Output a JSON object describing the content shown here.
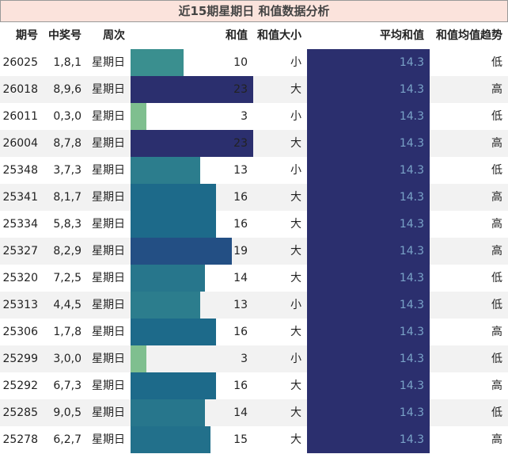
{
  "title": "近15期星期日 和值数据分析",
  "table": {
    "headers": [
      "期号",
      "中奖号",
      "周次",
      "和值",
      "和值大小",
      "平均和值",
      "和值均值趋势"
    ],
    "rows": [
      [
        "26025",
        "1,8,1",
        "星期日",
        10,
        "小",
        14.3,
        "低"
      ],
      [
        "26018",
        "8,9,6",
        "星期日",
        23,
        "大",
        14.3,
        "高"
      ],
      [
        "26011",
        "0,3,0",
        "星期日",
        3,
        "小",
        14.3,
        "低"
      ],
      [
        "26004",
        "8,7,8",
        "星期日",
        23,
        "大",
        14.3,
        "高"
      ],
      [
        "25348",
        "3,7,3",
        "星期日",
        13,
        "小",
        14.3,
        "低"
      ],
      [
        "25341",
        "8,1,7",
        "星期日",
        16,
        "大",
        14.3,
        "高"
      ],
      [
        "25334",
        "5,8,3",
        "星期日",
        16,
        "大",
        14.3,
        "高"
      ],
      [
        "25327",
        "8,2,9",
        "星期日",
        19,
        "大",
        14.3,
        "高"
      ],
      [
        "25320",
        "7,2,5",
        "星期日",
        14,
        "大",
        14.3,
        "低"
      ],
      [
        "25313",
        "4,4,5",
        "星期日",
        13,
        "小",
        14.3,
        "低"
      ],
      [
        "25306",
        "1,7,8",
        "星期日",
        16,
        "大",
        14.3,
        "高"
      ],
      [
        "25299",
        "3,0,0",
        "星期日",
        3,
        "小",
        14.3,
        "低"
      ],
      [
        "25292",
        "6,7,3",
        "星期日",
        16,
        "大",
        14.3,
        "高"
      ],
      [
        "25285",
        "9,0,5",
        "星期日",
        14,
        "大",
        14.3,
        "低"
      ],
      [
        "25278",
        "6,2,7",
        "星期日",
        15,
        "大",
        14.3,
        "高"
      ]
    ]
  }
}
